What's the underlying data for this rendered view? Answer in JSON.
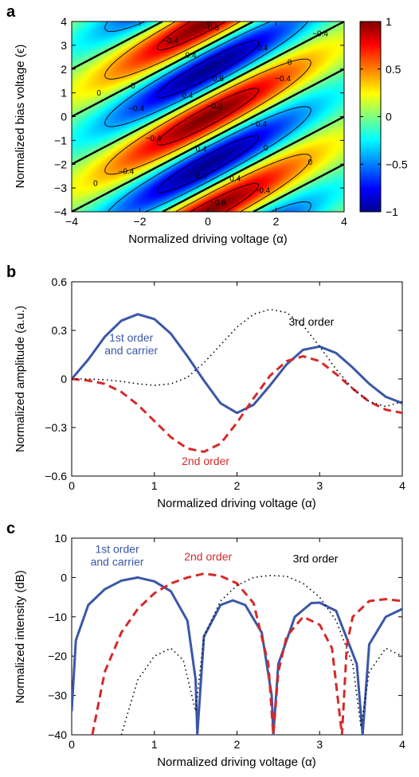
{
  "chart_data": [
    {
      "panel": "a",
      "type": "heatmap",
      "xlabel": "Normalized driving voltage (α)",
      "ylabel": "Normalized bias voltage (ϵ)",
      "xlim": [
        -4,
        4
      ],
      "ylim": [
        -4,
        4
      ],
      "xticks": [
        "−4",
        "−2",
        "0",
        "2",
        "4"
      ],
      "yticks": [
        "4",
        "3",
        "2",
        "1",
        "0",
        "−1",
        "−2",
        "−3",
        "−4"
      ],
      "colorbar": {
        "range": [
          -1,
          1
        ],
        "ticks": [
          "1",
          "0.5",
          "0",
          "−0.5",
          "−1"
        ],
        "colormap": [
          "#00008f",
          "#0000ff",
          "#00ffff",
          "#ffff00",
          "#ff0000",
          "#800000"
        ]
      },
      "contour_levels": [
        -0.8,
        -0.4,
        0,
        0.4,
        0.8
      ],
      "contour_labels": [
        "−0.8",
        "−0.4",
        "0",
        "0.4",
        "0.8"
      ],
      "grid": false
    },
    {
      "panel": "b",
      "type": "line",
      "xlabel": "Normalized driving voltage (α)",
      "ylabel": "Normalized amplitude (a.u.)",
      "xlim": [
        0,
        4
      ],
      "ylim": [
        -0.6,
        0.6
      ],
      "xticks": [
        "0",
        "1",
        "2",
        "3",
        "4"
      ],
      "yticks": [
        "0.6",
        "0.3",
        "0",
        "−0.3",
        "−0.6"
      ],
      "series": [
        {
          "name": "1st order and carrier",
          "label_lines": [
            "1st order",
            "and carrier"
          ],
          "color": "#3a57a8",
          "style": "solid",
          "x": [
            0,
            0.2,
            0.4,
            0.6,
            0.8,
            1.0,
            1.2,
            1.4,
            1.6,
            1.8,
            2.0,
            2.2,
            2.4,
            2.6,
            2.8,
            3.0,
            3.2,
            3.4,
            3.6,
            3.8,
            4.0
          ],
          "y": [
            0,
            0.12,
            0.26,
            0.36,
            0.4,
            0.37,
            0.28,
            0.14,
            -0.01,
            -0.15,
            -0.21,
            -0.16,
            -0.04,
            0.09,
            0.18,
            0.2,
            0.16,
            0.07,
            -0.03,
            -0.11,
            -0.15
          ]
        },
        {
          "name": "2nd order",
          "label_lines": [
            "2nd order"
          ],
          "color": "#d42a2a",
          "style": "dashed",
          "x": [
            0,
            0.2,
            0.4,
            0.6,
            0.8,
            1.0,
            1.2,
            1.4,
            1.6,
            1.8,
            2.0,
            2.2,
            2.4,
            2.6,
            2.8,
            3.0,
            3.2,
            3.4,
            3.6,
            3.8,
            4.0
          ],
          "y": [
            0,
            -0.01,
            -0.03,
            -0.08,
            -0.16,
            -0.26,
            -0.36,
            -0.43,
            -0.45,
            -0.4,
            -0.27,
            -0.12,
            0.02,
            0.11,
            0.14,
            0.11,
            0.03,
            -0.06,
            -0.14,
            -0.19,
            -0.21
          ]
        },
        {
          "name": "3rd order",
          "label_lines": [
            "3rd order"
          ],
          "color": "#000000",
          "style": "dotted",
          "x": [
            0,
            0.2,
            0.4,
            0.6,
            0.8,
            1.0,
            1.2,
            1.4,
            1.6,
            1.8,
            2.0,
            2.2,
            2.4,
            2.6,
            2.8,
            3.0,
            3.2,
            3.4,
            3.6,
            3.8,
            4.0
          ],
          "y": [
            0,
            0,
            -0.005,
            -0.015,
            -0.03,
            -0.04,
            -0.03,
            0.01,
            0.1,
            0.21,
            0.32,
            0.4,
            0.43,
            0.41,
            0.33,
            0.2,
            0.06,
            -0.06,
            -0.14,
            -0.17,
            -0.14
          ]
        }
      ],
      "grid": false
    },
    {
      "panel": "c",
      "type": "line",
      "xlabel": "Normalized driving voltage (α)",
      "ylabel": "Normalized intensity (dB)",
      "xlim": [
        0,
        4
      ],
      "ylim": [
        -40,
        10
      ],
      "xticks": [
        "0",
        "1",
        "2",
        "3",
        "4"
      ],
      "yticks": [
        "10",
        "0",
        "−10",
        "−20",
        "−30",
        "−40"
      ],
      "series": [
        {
          "name": "1st order and carrier",
          "label_lines": [
            "1st order",
            "and carrier"
          ],
          "color": "#3a57a8",
          "style": "solid",
          "x": [
            0,
            0.05,
            0.2,
            0.4,
            0.6,
            0.8,
            1.0,
            1.2,
            1.4,
            1.5,
            1.52,
            1.6,
            1.8,
            1.95,
            2.1,
            2.3,
            2.42,
            2.44,
            2.5,
            2.7,
            2.9,
            3.0,
            3.2,
            3.45,
            3.52,
            3.6,
            3.8,
            4.0
          ],
          "y": [
            -34,
            -16,
            -7,
            -3,
            -0.8,
            0,
            -1,
            -3.5,
            -11,
            -26,
            -40,
            -15,
            -7,
            -5.8,
            -7,
            -14,
            -30,
            -40,
            -22,
            -10,
            -6.5,
            -6.4,
            -8.5,
            -22,
            -40,
            -17,
            -10,
            -8
          ]
        },
        {
          "name": "2nd order",
          "label_lines": [
            "2nd order"
          ],
          "color": "#d42a2a",
          "style": "dashed",
          "x": [
            0.25,
            0.4,
            0.6,
            0.8,
            1.0,
            1.2,
            1.4,
            1.6,
            1.8,
            2.0,
            2.2,
            2.38,
            2.44,
            2.5,
            2.6,
            2.8,
            3.0,
            3.15,
            3.27,
            3.33,
            3.4,
            3.6,
            3.8,
            4.0
          ],
          "y": [
            -40,
            -24,
            -14,
            -8,
            -4,
            -1.5,
            0,
            1,
            0.4,
            -1.5,
            -6.5,
            -22,
            -40,
            -24,
            -15,
            -10,
            -12,
            -18,
            -40,
            -17,
            -10,
            -6,
            -5.5,
            -6
          ]
        },
        {
          "name": "3rd order",
          "label_lines": [
            "3rd order"
          ],
          "color": "#000000",
          "style": "dotted",
          "x": [
            0.6,
            0.8,
            1.0,
            1.2,
            1.35,
            1.5,
            1.6,
            1.8,
            2.0,
            2.2,
            2.4,
            2.6,
            2.8,
            3.0,
            3.2,
            3.4,
            3.5,
            3.6,
            3.8,
            4.0
          ],
          "y": [
            -40,
            -26,
            -20,
            -18,
            -21,
            -34,
            -15,
            -6,
            -2,
            0,
            0.5,
            0.3,
            -1.5,
            -5,
            -11,
            -22,
            -38,
            -24,
            -18,
            -20
          ]
        }
      ],
      "grid": false
    }
  ]
}
